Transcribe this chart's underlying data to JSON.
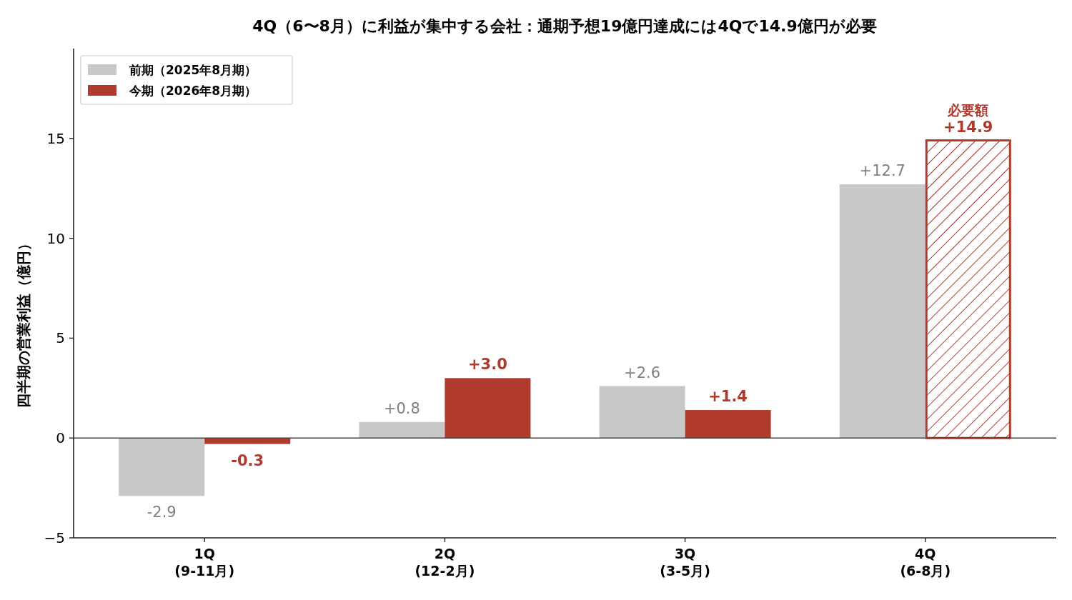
{
  "chart_data": {
    "type": "bar",
    "title": "4Q（6〜8月）に利益が集中する会社：通期予想19億円達成には4Qで14.9億円が必要",
    "ylabel": "四半期の営業利益（億円）",
    "categories": [
      "1Q\n(9-11月)",
      "2Q\n(12-2月)",
      "3Q\n(3-5月)",
      "4Q\n(6-8月)"
    ],
    "series": [
      {
        "name": "前期（2025年8月期）",
        "color": "#c8c8c8",
        "values": [
          -2.9,
          0.8,
          2.6,
          12.7
        ],
        "value_labels": [
          "-2.9",
          "+0.8",
          "+2.6",
          "+12.7"
        ]
      },
      {
        "name": "今期（2026年8月期）",
        "color": "#b03a2e",
        "values": [
          -0.3,
          3.0,
          1.4,
          14.9
        ],
        "value_labels": [
          "-0.3",
          "+3.0",
          "+1.4",
          "+14.9"
        ]
      }
    ],
    "ylim": [
      -5,
      19.5
    ],
    "yticks": [
      {
        "value": -5,
        "label": "−5"
      },
      0,
      5,
      10,
      15
    ],
    "ref_lines": [
      {
        "axis": "y",
        "value": 0,
        "color": "#444444"
      }
    ],
    "annotations": [
      {
        "text": "必要額",
        "x": "4Q\n(6-8月)",
        "y": 14.9
      }
    ],
    "legend": "top left"
  }
}
